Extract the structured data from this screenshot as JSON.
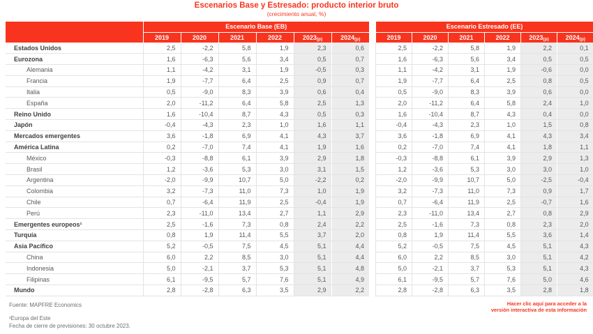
{
  "title": "Escenarios Base y Estresado: producto interior bruto",
  "subtitle": "(crecimiento anual, %)",
  "colors": {
    "brand_red": "#F9341E",
    "shaded_projection_columns": "#ECECEC"
  },
  "footer": {
    "source": "Fuente: MAPFRE Economics",
    "note1": "¹Europa del Este",
    "note2": "Fecha de cierre de previsiones: 30 octubre 2023."
  },
  "link": "Hacer clic aquí para acceder a la versión interactiva de esta información",
  "chart_data": {
    "type": "table",
    "title": "Escenarios Base y Estresado: producto interior bruto",
    "subtitle": "(crecimiento anual, %)",
    "column_groups": {
      "base": "Escenario Base (EB)",
      "stressed": "Escenario Estresado (EE)"
    },
    "columns": [
      "2019",
      "2020",
      "2021",
      "2022",
      "2023(p)",
      "2024(p)"
    ],
    "rows": [
      {
        "label": "Estados Unidos",
        "indent": false,
        "eb": [
          "2,5",
          "-2,2",
          "5,8",
          "1,9",
          "2,3",
          "0,6"
        ],
        "ee": [
          "2,5",
          "-2,2",
          "5,8",
          "1,9",
          "2,2",
          "0,1"
        ]
      },
      {
        "label": "Eurozona",
        "indent": false,
        "eb": [
          "1,6",
          "-6,3",
          "5,6",
          "3,4",
          "0,5",
          "0,7"
        ],
        "ee": [
          "1,6",
          "-6,3",
          "5,6",
          "3,4",
          "0,5",
          "0,5"
        ]
      },
      {
        "label": "Alemania",
        "indent": true,
        "eb": [
          "1,1",
          "-4,2",
          "3,1",
          "1,9",
          "-0,5",
          "0,3"
        ],
        "ee": [
          "1,1",
          "-4,2",
          "3,1",
          "1,9",
          "-0,6",
          "0,0"
        ]
      },
      {
        "label": "Francia",
        "indent": true,
        "eb": [
          "1,9",
          "-7,7",
          "6,4",
          "2,5",
          "0,9",
          "0,7"
        ],
        "ee": [
          "1,9",
          "-7,7",
          "6,4",
          "2,5",
          "0,8",
          "0,5"
        ]
      },
      {
        "label": "Italia",
        "indent": true,
        "eb": [
          "0,5",
          "-9,0",
          "8,3",
          "3,9",
          "0,6",
          "0,4"
        ],
        "ee": [
          "0,5",
          "-9,0",
          "8,3",
          "3,9",
          "0,6",
          "0,0"
        ]
      },
      {
        "label": "España",
        "indent": true,
        "eb": [
          "2,0",
          "-11,2",
          "6,4",
          "5,8",
          "2,5",
          "1,3"
        ],
        "ee": [
          "2,0",
          "-11,2",
          "6,4",
          "5,8",
          "2,4",
          "1,0"
        ]
      },
      {
        "label": "Reino Unido",
        "indent": false,
        "eb": [
          "1,6",
          "-10,4",
          "8,7",
          "4,3",
          "0,5",
          "0,3"
        ],
        "ee": [
          "1,6",
          "-10,4",
          "8,7",
          "4,3",
          "0,4",
          "0,0"
        ]
      },
      {
        "label": "Japón",
        "indent": false,
        "eb": [
          "-0,4",
          "-4,3",
          "2,3",
          "1,0",
          "1,6",
          "1,1"
        ],
        "ee": [
          "-0,4",
          "-4,3",
          "2,3",
          "1,0",
          "1,5",
          "0,8"
        ]
      },
      {
        "label": "Mercados emergentes",
        "indent": false,
        "eb": [
          "3,6",
          "-1,8",
          "6,9",
          "4,1",
          "4,3",
          "3,7"
        ],
        "ee": [
          "3,6",
          "-1,8",
          "6,9",
          "4,1",
          "4,3",
          "3,4"
        ]
      },
      {
        "label": "América Latina",
        "indent": false,
        "eb": [
          "0,2",
          "-7,0",
          "7,4",
          "4,1",
          "1,9",
          "1,6"
        ],
        "ee": [
          "0,2",
          "-7,0",
          "7,4",
          "4,1",
          "1,8",
          "1,1"
        ]
      },
      {
        "label": "México",
        "indent": true,
        "eb": [
          "-0,3",
          "-8,8",
          "6,1",
          "3,9",
          "2,9",
          "1,8"
        ],
        "ee": [
          "-0,3",
          "-8,8",
          "6,1",
          "3,9",
          "2,9",
          "1,3"
        ]
      },
      {
        "label": "Brasil",
        "indent": true,
        "eb": [
          "1,2",
          "-3,6",
          "5,3",
          "3,0",
          "3,1",
          "1,5"
        ],
        "ee": [
          "1,2",
          "-3,6",
          "5,3",
          "3,0",
          "3,0",
          "1,0"
        ]
      },
      {
        "label": "Argentina",
        "indent": true,
        "eb": [
          "-2,0",
          "-9,9",
          "10,7",
          "5,0",
          "-2,2",
          "0,2"
        ],
        "ee": [
          "-2,0",
          "-9,9",
          "10,7",
          "5,0",
          "-2,5",
          "-0,4"
        ]
      },
      {
        "label": "Colombia",
        "indent": true,
        "eb": [
          "3,2",
          "-7,3",
          "11,0",
          "7,3",
          "1,0",
          "1,9"
        ],
        "ee": [
          "3,2",
          "-7,3",
          "11,0",
          "7,3",
          "0,9",
          "1,7"
        ]
      },
      {
        "label": "Chile",
        "indent": true,
        "eb": [
          "0,7",
          "-6,4",
          "11,9",
          "2,5",
          "-0,4",
          "1,9"
        ],
        "ee": [
          "0,7",
          "-6,4",
          "11,9",
          "2,5",
          "-0,7",
          "1,6"
        ]
      },
      {
        "label": "Perú",
        "indent": true,
        "eb": [
          "2,3",
          "-11,0",
          "13,4",
          "2,7",
          "1,1",
          "2,9"
        ],
        "ee": [
          "2,3",
          "-11,0",
          "13,4",
          "2,7",
          "0,8",
          "2,9"
        ]
      },
      {
        "label": "Emergentes europeos¹",
        "indent": false,
        "eb": [
          "2,5",
          "-1,6",
          "7,3",
          "0,8",
          "2,4",
          "2,2"
        ],
        "ee": [
          "2,5",
          "-1,6",
          "7,3",
          "0,8",
          "2,3",
          "2,0"
        ]
      },
      {
        "label": "Turquía",
        "indent": false,
        "eb": [
          "0,8",
          "1,9",
          "11,4",
          "5,5",
          "3,7",
          "2,0"
        ],
        "ee": [
          "0,8",
          "1,9",
          "11,4",
          "5,5",
          "3,6",
          "1,4"
        ]
      },
      {
        "label": "Asia Pacífico",
        "indent": false,
        "eb": [
          "5,2",
          "-0,5",
          "7,5",
          "4,5",
          "5,1",
          "4,4"
        ],
        "ee": [
          "5,2",
          "-0,5",
          "7,5",
          "4,5",
          "5,1",
          "4,3"
        ]
      },
      {
        "label": "China",
        "indent": true,
        "eb": [
          "6,0",
          "2,2",
          "8,5",
          "3,0",
          "5,1",
          "4,4"
        ],
        "ee": [
          "6,0",
          "2,2",
          "8,5",
          "3,0",
          "5,1",
          "4,2"
        ]
      },
      {
        "label": "Indonesia",
        "indent": true,
        "eb": [
          "5,0",
          "-2,1",
          "3,7",
          "5,3",
          "5,1",
          "4,8"
        ],
        "ee": [
          "5,0",
          "-2,1",
          "3,7",
          "5,3",
          "5,1",
          "4,3"
        ]
      },
      {
        "label": "Filipinas",
        "indent": true,
        "eb": [
          "6,1",
          "-9,5",
          "5,7",
          "7,6",
          "5,1",
          "4,9"
        ],
        "ee": [
          "6,1",
          "-9,5",
          "5,7",
          "7,6",
          "5,0",
          "4,6"
        ]
      },
      {
        "label": "Mundo",
        "indent": false,
        "eb": [
          "2,8",
          "-2,8",
          "6,3",
          "3,5",
          "2,9",
          "2,2"
        ],
        "ee": [
          "2,8",
          "-2,8",
          "6,3",
          "3,5",
          "2,8",
          "1,8"
        ]
      }
    ]
  }
}
